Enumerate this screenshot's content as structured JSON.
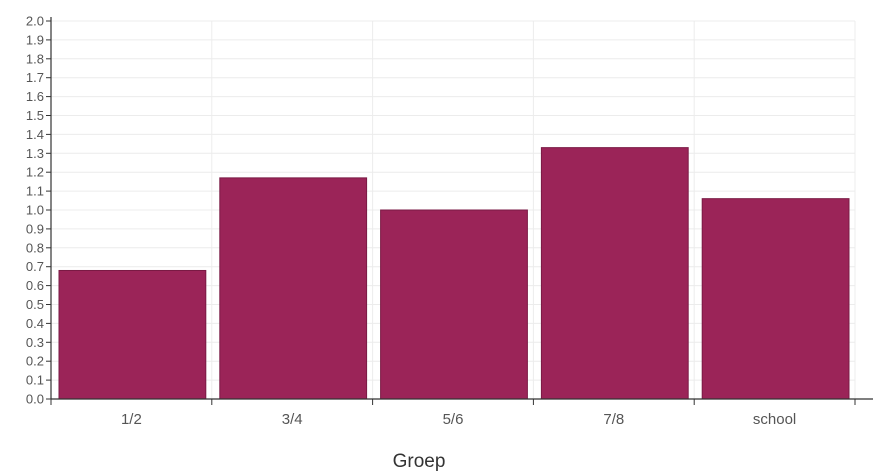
{
  "chart_data": {
    "type": "bar",
    "categories": [
      "1/2",
      "3/4",
      "5/6",
      "7/8",
      "school"
    ],
    "values": [
      0.68,
      1.17,
      1.0,
      1.33,
      1.06
    ],
    "title": "",
    "xlabel": "Groep",
    "ylabel": "",
    "ylim": [
      0,
      2.0
    ],
    "ytick_step": 0.1,
    "grid": true,
    "bar_color": "#9b2458"
  }
}
